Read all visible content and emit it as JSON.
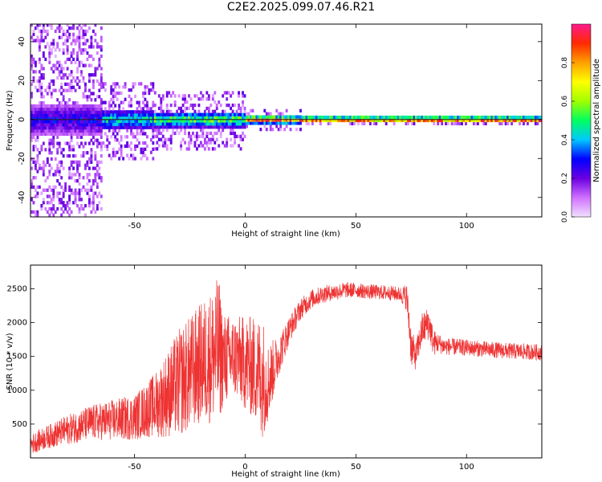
{
  "title": "C2E2.2025.099.07.46.R21",
  "colors": {
    "line": "#ee3333",
    "baseline": "#222222",
    "colormap": [
      "#f0e0ff",
      "#d070ff",
      "#6a00e0",
      "#0000ff",
      "#00c8ff",
      "#00ff60",
      "#a0ff00",
      "#ffff00",
      "#ffa000",
      "#ff2a00",
      "#ff1a8c"
    ]
  },
  "chart_data": [
    {
      "type": "heatmap",
      "title": "",
      "xlabel": "Height of straight line (km)",
      "ylabel": "Frequency (Hz)",
      "xlim": [
        -97,
        134
      ],
      "ylim": [
        -50,
        49
      ],
      "xticks": [
        "-50",
        "0",
        "50",
        "100"
      ],
      "xtick_values": [
        -50,
        0,
        50,
        100
      ],
      "yticks": [
        "-40",
        "-20",
        "0",
        "20",
        "40"
      ],
      "ytick_values": [
        -40,
        -20,
        0,
        20,
        40
      ],
      "colorbar": {
        "label": "Normalized spectral amplitude",
        "range": [
          0,
          1
        ],
        "ticks": [
          "0.0",
          "0.2",
          "0.4",
          "0.6",
          "0.8"
        ],
        "tick_values": [
          0,
          0.2,
          0.4,
          0.6,
          0.8
        ]
      },
      "bands": [
        {
          "x_start": -97,
          "x_end": -65,
          "center_hz": 0,
          "halfwidth_hz": 8,
          "peak_amplitude": 0.3,
          "scatter_halfwidth_hz": 49
        },
        {
          "x_start": -65,
          "x_end": -42,
          "center_hz": 0,
          "halfwidth_hz": 5,
          "peak_amplitude": 0.5,
          "scatter_halfwidth_hz": 20
        },
        {
          "x_start": -42,
          "x_end": 0,
          "center_hz": 0,
          "halfwidth_hz": 4,
          "peak_amplitude": 0.6,
          "scatter_halfwidth_hz": 15
        },
        {
          "x_start": 0,
          "x_end": 25,
          "center_hz": 0,
          "halfwidth_hz": 2,
          "peak_amplitude": 0.9,
          "scatter_halfwidth_hz": 5
        },
        {
          "x_start": 25,
          "x_end": 134,
          "center_hz": 0,
          "halfwidth_hz": 1.5,
          "peak_amplitude": 1.0,
          "scatter_halfwidth_hz": 2
        }
      ]
    },
    {
      "type": "line",
      "title": "",
      "xlabel": "Height of straight line (km)",
      "ylabel": "SNR (10 * v/v)",
      "xlim": [
        -97,
        134
      ],
      "ylim": [
        0,
        2850
      ],
      "xticks": [
        "-50",
        "0",
        "50",
        "100"
      ],
      "xtick_values": [
        -50,
        0,
        50,
        100
      ],
      "yticks": [
        "500",
        "1000",
        "1500",
        "2000",
        "2500"
      ],
      "ytick_values": [
        500,
        1000,
        1500,
        2000,
        2500
      ],
      "series": [
        {
          "color": "#ee3333",
          "x": [
            -97,
            -90,
            -80,
            -70,
            -60,
            -50,
            -45,
            -40,
            -35,
            -30,
            -25,
            -20,
            -15,
            -12,
            -10,
            -5,
            0,
            5,
            8,
            10,
            15,
            20,
            25,
            30,
            35,
            40,
            45,
            50,
            55,
            60,
            65,
            70,
            73,
            75,
            77,
            80,
            83,
            85,
            87,
            90,
            100,
            110,
            120,
            134
          ],
          "y": [
            200,
            300,
            420,
            520,
            560,
            600,
            700,
            800,
            950,
            1100,
            1250,
            1400,
            1500,
            1600,
            1450,
            1500,
            1400,
            1300,
            1200,
            1100,
            1500,
            1900,
            2200,
            2350,
            2420,
            2450,
            2480,
            2480,
            2460,
            2450,
            2440,
            2420,
            2380,
            1650,
            1500,
            1900,
            2000,
            1700,
            1700,
            1650,
            1630,
            1600,
            1580,
            1560
          ],
          "spread": [
            150,
            170,
            220,
            260,
            300,
            340,
            400,
            500,
            650,
            800,
            850,
            900,
            1000,
            1100,
            700,
            600,
            700,
            800,
            900,
            600,
            300,
            200,
            160,
            140,
            130,
            120,
            120,
            110,
            110,
            110,
            110,
            110,
            200,
            300,
            200,
            250,
            250,
            200,
            150,
            130,
            120,
            120,
            120,
            120
          ]
        }
      ]
    }
  ]
}
